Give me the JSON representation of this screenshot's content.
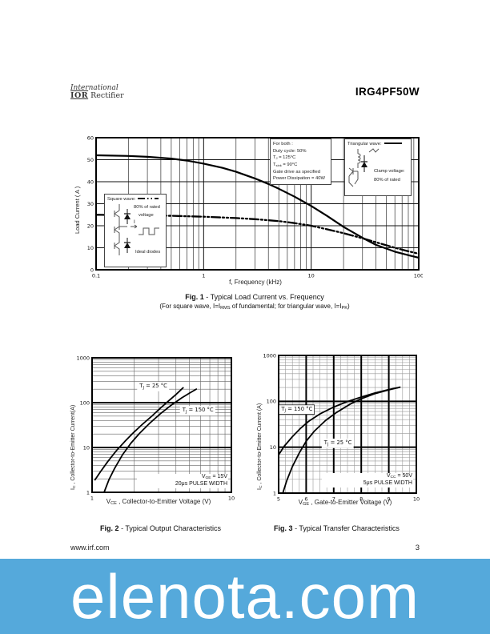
{
  "header": {
    "logo_line1": "International",
    "logo_ior": "IOR",
    "logo_rectifier": "Rectifier",
    "part_number": "IRG4PF50W"
  },
  "fig1": {
    "ylabel": "Load Current ( A )",
    "xlabel": "f, Frequency (kHz)",
    "caption_bold": "Fig. 1",
    "caption_text": " - Typical Load Current vs. Frequency",
    "caption_line2": [
      {
        "t": "(For square wave, I=I"
      },
      {
        "sub": "RMS"
      },
      {
        "t": " of fundamental; for triangular wave,  I=I"
      },
      {
        "sub": "PK"
      },
      {
        "t": ")"
      }
    ],
    "conditions_box": {
      "title": "For both :",
      "lines": [
        [
          {
            "t": "Duty cycle: 50%"
          }
        ],
        [
          {
            "t": "T"
          },
          {
            "sub": "J"
          },
          {
            "t": " = 125°C"
          }
        ],
        [
          {
            "t": "T"
          },
          {
            "sub": "sink"
          },
          {
            "t": " = 90°C"
          }
        ],
        [
          {
            "t": "Gate drive as specified"
          }
        ],
        [
          {
            "t": "Power Dissipation = 40W"
          }
        ]
      ]
    },
    "triangular_box": {
      "title": "Triangular wave:",
      "note_line1": "Clamp voltage:",
      "note_line2": "80% of rated"
    },
    "square_box": {
      "title": "Square wave:",
      "note_line1": "80% of rated",
      "note_line2": "voltage",
      "note_line3": "Ideal diodes"
    }
  },
  "fig2": {
    "ylabel": [
      {
        "t": "I"
      },
      {
        "sub": "C"
      },
      {
        "t": " , Collector-to-Emitter Current(A)"
      }
    ],
    "xlabel": [
      {
        "t": "V"
      },
      {
        "sub": "CE"
      },
      {
        "t": " , Collector-to-Emitter Voltage (V)"
      }
    ],
    "caption_bold": "Fig. 2",
    "caption_text": " - Typical Output Characteristics",
    "note": [
      [
        {
          "t": "V"
        },
        {
          "sub": "GE"
        },
        {
          "t": " = 15V"
        }
      ],
      [
        {
          "t": "20μs PULSE WIDTH"
        }
      ]
    ]
  },
  "fig3": {
    "ylabel": [
      {
        "t": "I"
      },
      {
        "sub": "C"
      },
      {
        "t": " , Collector-to-Emitter Current (A)"
      }
    ],
    "xlabel": [
      {
        "t": "V"
      },
      {
        "sub": "GE"
      },
      {
        "t": " , Gate-to-Emitter Voltage (V)"
      }
    ],
    "caption_bold": "Fig. 3",
    "caption_text": " - Typical Transfer Characteristics",
    "note": [
      [
        {
          "t": "V"
        },
        {
          "sub": "CC"
        },
        {
          "t": " = 50V"
        }
      ],
      [
        {
          "t": "5μs PULSE WIDTH"
        }
      ]
    ]
  },
  "footer": {
    "website": "www.irf.com",
    "page_number": "3"
  },
  "banner": {
    "text": "elenota.com",
    "bg": "#55A9DB",
    "fg": "#FFFFFF"
  },
  "chart_data": [
    {
      "id": "chart1",
      "type": "line",
      "title": "Typical Load Current vs. Frequency",
      "xlabel": "f, Frequency (kHz)",
      "ylabel": "Load Current (A)",
      "x_scale": "log",
      "x_min": 0.1,
      "x_max": 100,
      "x_ticks": [
        0.1,
        1,
        10,
        100
      ],
      "y_scale": "linear",
      "y_min": 0,
      "y_max": 60,
      "y_ticks": [
        0,
        10,
        20,
        30,
        40,
        50,
        60
      ],
      "grid": {
        "major_width": 1,
        "minor_width": 0.7,
        "major_color": "#111",
        "minor_color": "#333"
      },
      "series": [
        {
          "name": "Triangular wave (I=IPK)",
          "dash": "solid",
          "width": 2.2,
          "points": [
            [
              0.1,
              52
            ],
            [
              0.2,
              51.7
            ],
            [
              0.3,
              51.3
            ],
            [
              0.5,
              50.5
            ],
            [
              0.7,
              49.6
            ],
            [
              1,
              48.2
            ],
            [
              1.5,
              46.3
            ],
            [
              2,
              44.5
            ],
            [
              3,
              41.5
            ],
            [
              4,
              39
            ],
            [
              5,
              36.8
            ],
            [
              7,
              33.2
            ],
            [
              10,
              29
            ],
            [
              14,
              24.5
            ],
            [
              20,
              19.5
            ],
            [
              30,
              14.5
            ],
            [
              40,
              11.3
            ],
            [
              60,
              8.2
            ],
            [
              80,
              6.6
            ],
            [
              100,
              5.5
            ]
          ]
        },
        {
          "name": "Square wave (I=IRMS)",
          "dash": "dashdot",
          "width": 2.3,
          "points": [
            [
              0.1,
              25
            ],
            [
              0.3,
              24.7
            ],
            [
              0.5,
              24.5
            ],
            [
              1,
              24.1
            ],
            [
              2,
              23.5
            ],
            [
              3,
              23
            ],
            [
              5,
              22.1
            ],
            [
              7,
              21.2
            ],
            [
              10,
              20
            ],
            [
              14,
              18.4
            ],
            [
              20,
              16.6
            ],
            [
              30,
              14.3
            ],
            [
              40,
              12.5
            ],
            [
              60,
              10
            ],
            [
              80,
              8.4
            ],
            [
              100,
              7.3
            ]
          ]
        }
      ],
      "labels": []
    },
    {
      "id": "chart2",
      "type": "line",
      "title": "Typical Output Characteristics",
      "xlabel": "VCE, Collector-to-Emitter Voltage (V)",
      "ylabel": "IC, Collector-to-Emitter Current (A)",
      "x_scale": "log",
      "x_min": 1,
      "x_max": 10,
      "x_ticks": [
        1,
        10
      ],
      "y_scale": "log",
      "y_min": 1,
      "y_max": 1000,
      "y_ticks": [
        1,
        10,
        100,
        1000
      ],
      "grid": {
        "major_width": 2,
        "minor_width": 0.6,
        "major_color": "#000",
        "minor_color": "#666"
      },
      "series": [
        {
          "name": "TJ = 25 °C",
          "dash": "solid",
          "width": 1.8,
          "points": [
            [
              1.05,
              1.9
            ],
            [
              1.15,
              2.9
            ],
            [
              1.3,
              4.9
            ],
            [
              1.5,
              8.6
            ],
            [
              1.75,
              14.5
            ],
            [
              2,
              22
            ],
            [
              2.3,
              33
            ],
            [
              2.7,
              51
            ],
            [
              3.1,
              76
            ],
            [
              3.5,
              106
            ],
            [
              4,
              152
            ],
            [
              4.5,
              215
            ]
          ]
        },
        {
          "name": "TJ = 150 °C",
          "dash": "solid",
          "width": 1.8,
          "points": [
            [
              1.22,
              1
            ],
            [
              1.32,
              1.9
            ],
            [
              1.45,
              3.4
            ],
            [
              1.65,
              6.8
            ],
            [
              1.9,
              12.5
            ],
            [
              2.2,
              21
            ],
            [
              2.6,
              35
            ],
            [
              3.1,
              57
            ],
            [
              3.7,
              88
            ],
            [
              4.4,
              128
            ],
            [
              5,
              163
            ],
            [
              5.6,
              200
            ]
          ]
        }
      ],
      "labels": [
        {
          "fx": 0.44,
          "fy": 0.22,
          "anchor": "middle",
          "boxed": false,
          "parts": [
            {
              "t": "T"
            },
            {
              "sub": "J"
            },
            {
              "t": " = 25 °C"
            }
          ]
        },
        {
          "fx": 0.76,
          "fy": 0.4,
          "anchor": "middle",
          "boxed": false,
          "parts": [
            {
              "t": "T"
            },
            {
              "sub": "J"
            },
            {
              "t": " = 150 °C"
            }
          ]
        }
      ]
    },
    {
      "id": "chart3",
      "type": "line",
      "title": "Typical Transfer Characteristics",
      "xlabel": "VGE, Gate-to-Emitter Voltage (V)",
      "ylabel": "IC, Collector-to-Emitter Current (A)",
      "x_scale": "linear",
      "x_min": 5,
      "x_max": 10,
      "x_ticks": [
        5,
        6,
        7,
        8,
        9,
        10
      ],
      "y_scale": "log",
      "y_min": 1,
      "y_max": 1000,
      "y_ticks": [
        1,
        10,
        100,
        1000
      ],
      "grid": {
        "major_width": 2,
        "minor_width": 0.6,
        "major_color": "#000",
        "minor_color": "#999",
        "x_minor_step": 0.25
      },
      "series": [
        {
          "name": "TJ = 150 °C",
          "dash": "solid",
          "width": 1.8,
          "points": [
            [
              5,
              6.8
            ],
            [
              5.2,
              10.5
            ],
            [
              5.5,
              17
            ],
            [
              5.8,
              26
            ],
            [
              6.1,
              37
            ],
            [
              6.5,
              53
            ],
            [
              7,
              75
            ],
            [
              7.5,
              99
            ],
            [
              8,
              124
            ],
            [
              8.5,
              152
            ],
            [
              9,
              181
            ],
            [
              9.4,
              203
            ]
          ]
        },
        {
          "name": "TJ = 25 °C",
          "dash": "solid",
          "width": 1.8,
          "points": [
            [
              5.15,
              1
            ],
            [
              5.3,
              1.9
            ],
            [
              5.5,
              3.8
            ],
            [
              5.75,
              7.5
            ],
            [
              6,
              13.5
            ],
            [
              6.3,
              22.5
            ],
            [
              6.7,
              38
            ],
            [
              7.1,
              57
            ],
            [
              7.6,
              87
            ],
            [
              8,
              114
            ],
            [
              8.5,
              147
            ],
            [
              9,
              178
            ],
            [
              9.4,
              203
            ]
          ]
        }
      ],
      "labels": [
        {
          "fx": 0.02,
          "fy": 0.4,
          "anchor": "start",
          "boxed": true,
          "parts": [
            {
              "t": "T"
            },
            {
              "sub": "J"
            },
            {
              "t": " = 150 °C"
            }
          ]
        },
        {
          "fx": 0.33,
          "fy": 0.645,
          "anchor": "start",
          "boxed": false,
          "parts": [
            {
              "t": "T"
            },
            {
              "sub": "J"
            },
            {
              "t": " = 25 °C"
            }
          ]
        }
      ]
    }
  ]
}
